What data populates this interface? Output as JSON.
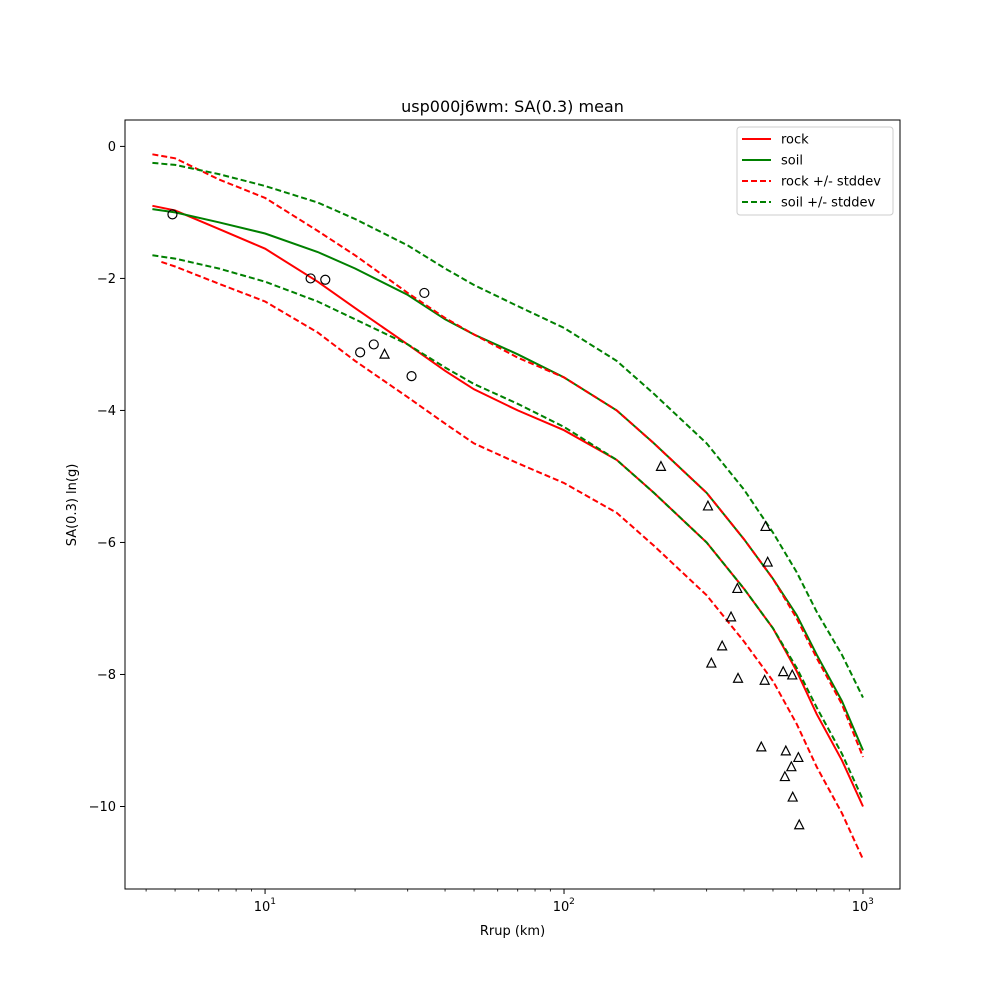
{
  "chart_data": {
    "type": "line",
    "title": "usp000j6wm: SA(0.3) mean",
    "xlabel": "Rrup (km)",
    "ylabel": "SA(0.3) ln(g)",
    "xscale": "log",
    "xlim": [
      3.4,
      1330
    ],
    "ylim": [
      -11.25,
      0.4
    ],
    "xticks": [
      {
        "value": 10,
        "label": "10",
        "exp": "1"
      },
      {
        "value": 100,
        "label": "10",
        "exp": "2"
      },
      {
        "value": 1000,
        "label": "10",
        "exp": "3"
      }
    ],
    "yticks": [
      {
        "value": 0,
        "label": "0"
      },
      {
        "value": -2,
        "label": "−2"
      },
      {
        "value": -4,
        "label": "−4"
      },
      {
        "value": -6,
        "label": "−6"
      },
      {
        "value": -8,
        "label": "−8"
      },
      {
        "value": -10,
        "label": "−10"
      }
    ],
    "grid": false,
    "legend_position": "top-right",
    "legend": [
      {
        "label": "rock",
        "color": "#ff0000",
        "dash": "solid"
      },
      {
        "label": "soil",
        "color": "#008000",
        "dash": "solid"
      },
      {
        "label": "rock +/- stddev",
        "color": "#ff0000",
        "dash": "dashed"
      },
      {
        "label": "soil +/- stddev",
        "color": "#008000",
        "dash": "dashed"
      }
    ],
    "series": [
      {
        "name": "rock",
        "color": "#ff0000",
        "dash": "solid",
        "points": [
          [
            4.2,
            -0.9
          ],
          [
            5,
            -0.97
          ],
          [
            7,
            -1.25
          ],
          [
            10,
            -1.55
          ],
          [
            15,
            -2.05
          ],
          [
            20,
            -2.45
          ],
          [
            30,
            -3.0
          ],
          [
            40,
            -3.4
          ],
          [
            50,
            -3.68
          ],
          [
            70,
            -4.0
          ],
          [
            100,
            -4.3
          ],
          [
            150,
            -4.75
          ],
          [
            200,
            -5.25
          ],
          [
            300,
            -6.0
          ],
          [
            400,
            -6.7
          ],
          [
            500,
            -7.3
          ],
          [
            600,
            -7.95
          ],
          [
            700,
            -8.6
          ],
          [
            850,
            -9.3
          ],
          [
            1000,
            -10.0
          ]
        ]
      },
      {
        "name": "soil",
        "color": "#008000",
        "dash": "solid",
        "points": [
          [
            4.2,
            -0.95
          ],
          [
            5,
            -1.0
          ],
          [
            7,
            -1.15
          ],
          [
            10,
            -1.32
          ],
          [
            15,
            -1.6
          ],
          [
            20,
            -1.85
          ],
          [
            30,
            -2.25
          ],
          [
            40,
            -2.62
          ],
          [
            50,
            -2.85
          ],
          [
            70,
            -3.15
          ],
          [
            100,
            -3.5
          ],
          [
            150,
            -4.0
          ],
          [
            200,
            -4.5
          ],
          [
            300,
            -5.25
          ],
          [
            400,
            -5.95
          ],
          [
            500,
            -6.55
          ],
          [
            600,
            -7.1
          ],
          [
            700,
            -7.7
          ],
          [
            850,
            -8.4
          ],
          [
            1000,
            -9.15
          ]
        ]
      },
      {
        "name": "rock +/- stddev",
        "color": "#ff0000",
        "dash": "dashed",
        "points": [
          [
            4.2,
            -0.12
          ],
          [
            5,
            -0.18
          ],
          [
            7,
            -0.5
          ],
          [
            10,
            -0.78
          ],
          [
            15,
            -1.28
          ],
          [
            20,
            -1.65
          ],
          [
            30,
            -2.22
          ],
          [
            40,
            -2.6
          ],
          [
            50,
            -2.85
          ],
          [
            70,
            -3.2
          ],
          [
            100,
            -3.5
          ],
          [
            150,
            -4.0
          ],
          [
            200,
            -4.5
          ],
          [
            300,
            -5.25
          ],
          [
            400,
            -5.95
          ],
          [
            500,
            -6.55
          ],
          [
            600,
            -7.15
          ],
          [
            700,
            -7.75
          ],
          [
            850,
            -8.45
          ],
          [
            1000,
            -9.25
          ]
        ]
      },
      {
        "name": "rock +/- stddev",
        "color": "#ff0000",
        "dash": "dashed",
        "points": [
          [
            4.5,
            -1.75
          ],
          [
            5,
            -1.82
          ],
          [
            7,
            -2.08
          ],
          [
            10,
            -2.35
          ],
          [
            15,
            -2.82
          ],
          [
            20,
            -3.25
          ],
          [
            30,
            -3.8
          ],
          [
            40,
            -4.2
          ],
          [
            50,
            -4.5
          ],
          [
            70,
            -4.8
          ],
          [
            100,
            -5.1
          ],
          [
            150,
            -5.55
          ],
          [
            200,
            -6.05
          ],
          [
            300,
            -6.8
          ],
          [
            400,
            -7.5
          ],
          [
            500,
            -8.1
          ],
          [
            600,
            -8.75
          ],
          [
            700,
            -9.4
          ],
          [
            850,
            -10.1
          ],
          [
            1000,
            -10.8
          ]
        ]
      },
      {
        "name": "soil +/- stddev",
        "color": "#008000",
        "dash": "dashed",
        "points": [
          [
            4.2,
            -0.25
          ],
          [
            5,
            -0.28
          ],
          [
            7,
            -0.42
          ],
          [
            10,
            -0.6
          ],
          [
            15,
            -0.85
          ],
          [
            20,
            -1.1
          ],
          [
            30,
            -1.5
          ],
          [
            40,
            -1.85
          ],
          [
            50,
            -2.1
          ],
          [
            70,
            -2.42
          ],
          [
            100,
            -2.75
          ],
          [
            150,
            -3.25
          ],
          [
            200,
            -3.75
          ],
          [
            300,
            -4.5
          ],
          [
            400,
            -5.2
          ],
          [
            500,
            -5.85
          ],
          [
            600,
            -6.45
          ],
          [
            700,
            -7.05
          ],
          [
            850,
            -7.7
          ],
          [
            1000,
            -8.35
          ]
        ]
      },
      {
        "name": "soil +/- stddev",
        "color": "#008000",
        "dash": "dashed",
        "points": [
          [
            4.2,
            -1.65
          ],
          [
            5,
            -1.7
          ],
          [
            7,
            -1.85
          ],
          [
            10,
            -2.05
          ],
          [
            15,
            -2.35
          ],
          [
            20,
            -2.62
          ],
          [
            30,
            -3.0
          ],
          [
            40,
            -3.35
          ],
          [
            50,
            -3.6
          ],
          [
            70,
            -3.9
          ],
          [
            100,
            -4.25
          ],
          [
            150,
            -4.75
          ],
          [
            200,
            -5.25
          ],
          [
            300,
            -6.0
          ],
          [
            400,
            -6.7
          ],
          [
            500,
            -7.3
          ],
          [
            600,
            -7.9
          ],
          [
            700,
            -8.5
          ],
          [
            850,
            -9.2
          ],
          [
            1000,
            -9.9
          ]
        ]
      }
    ],
    "scatter": [
      {
        "marker": "circle",
        "points": [
          [
            4.9,
            -1.03
          ],
          [
            14.2,
            -2.0
          ],
          [
            15.9,
            -2.02
          ],
          [
            20.8,
            -3.12
          ],
          [
            23.1,
            -3.0
          ],
          [
            30.9,
            -3.48
          ],
          [
            34.1,
            -2.22
          ]
        ]
      },
      {
        "marker": "triangle",
        "points": [
          [
            25.1,
            -3.15
          ],
          [
            211,
            -4.85
          ],
          [
            303,
            -5.45
          ],
          [
            311,
            -7.83
          ],
          [
            338,
            -7.57
          ],
          [
            362,
            -7.13
          ],
          [
            380,
            -6.7
          ],
          [
            382,
            -8.06
          ],
          [
            457,
            -9.1
          ],
          [
            469,
            -8.09
          ],
          [
            472,
            -5.76
          ],
          [
            480,
            -6.3
          ],
          [
            541,
            -7.96
          ],
          [
            548,
            -9.55
          ],
          [
            552,
            -9.16
          ],
          [
            576,
            -9.4
          ],
          [
            580,
            -8.01
          ],
          [
            582,
            -9.86
          ],
          [
            608,
            -9.26
          ],
          [
            612,
            -10.28
          ]
        ]
      }
    ]
  }
}
